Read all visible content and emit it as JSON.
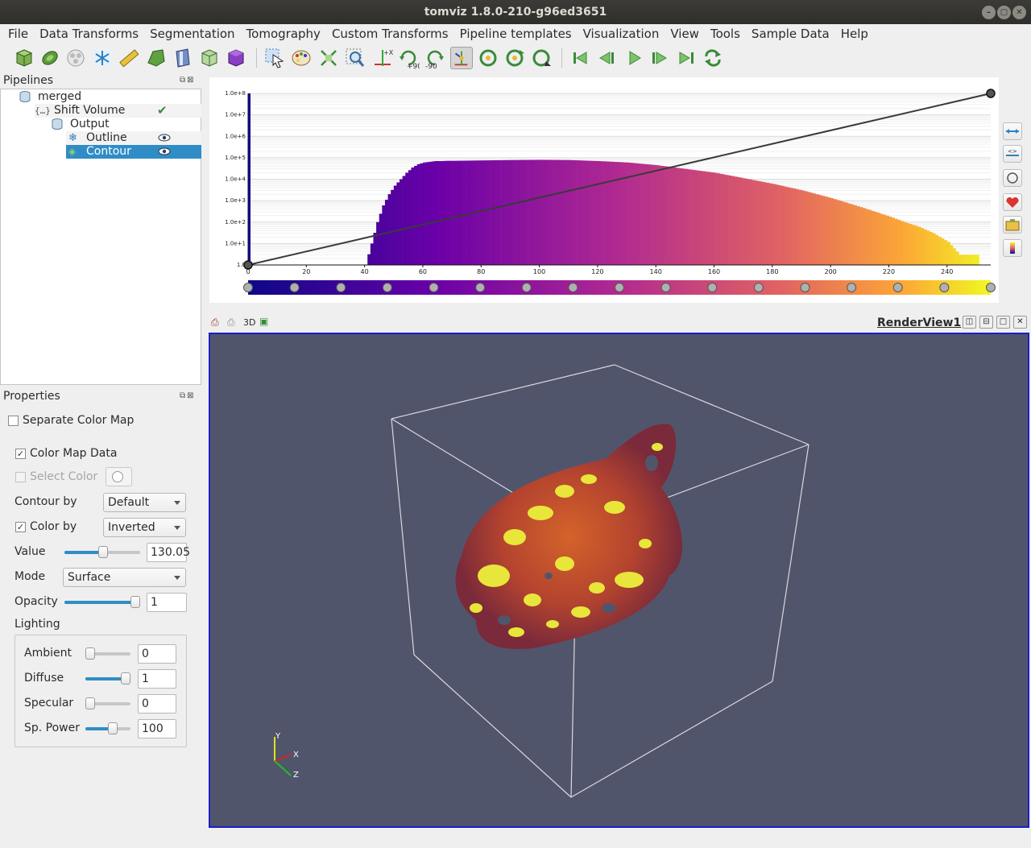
{
  "window": {
    "title": "tomviz 1.8.0-210-g96ed3651"
  },
  "menu": [
    "File",
    "Data Transforms",
    "Segmentation",
    "Tomography",
    "Custom Transforms",
    "Pipeline templates",
    "Visualization",
    "View",
    "Tools",
    "Sample Data",
    "Help"
  ],
  "toolbar": {
    "icons": [
      "open-data-icon",
      "reset-icon",
      "cubes-icon",
      "snowflake-icon",
      "ruler-icon",
      "shape-icon",
      "slice-icon",
      "cube-outline-icon",
      "volume-icon",
      "select-icon",
      "palette-icon",
      "reset-camera-icon",
      "zoom-to-box-icon",
      "axes-icon",
      "rotate-plus90-icon",
      "rotate-minus90-icon",
      "center-rotation-icon",
      "rotation-x-icon",
      "rotation-y-icon",
      "rotation-z-icon",
      "first-frame-icon",
      "previous-frame-icon",
      "play-icon",
      "next-frame-icon",
      "last-frame-icon",
      "loop-icon"
    ],
    "rotate_plus": "+90",
    "rotate_minus": "-90"
  },
  "pipelines": {
    "title": "Pipelines",
    "items": [
      {
        "label": "merged",
        "icon": "data-source-icon"
      },
      {
        "label": "Shift Volume",
        "icon": "python-operator-icon",
        "status": "checkmark-icon"
      },
      {
        "label": "Output",
        "icon": "data-source-icon"
      },
      {
        "label": "Outline",
        "icon": "outline-module-icon",
        "visibility": "eye-icon"
      },
      {
        "label": "Contour",
        "icon": "contour-module-icon",
        "visibility": "eye-icon",
        "selected": true
      }
    ]
  },
  "properties": {
    "title": "Properties",
    "separate_color_map": {
      "label": "Separate Color Map",
      "checked": false
    },
    "color_map_data": {
      "label": "Color Map Data",
      "checked": true
    },
    "select_color": {
      "label": "Select Color",
      "checked": false,
      "enabled": false
    },
    "contour_by": {
      "label": "Contour by",
      "value": "Default"
    },
    "color_by": {
      "label": "Color by",
      "checked": true,
      "value": "Inverted"
    },
    "value": {
      "label": "Value",
      "value": "130.05",
      "fraction": 0.51
    },
    "mode": {
      "label": "Mode",
      "value": "Surface"
    },
    "opacity": {
      "label": "Opacity",
      "value": "1",
      "fraction": 1.0
    },
    "lighting": {
      "label": "Lighting",
      "ambient": {
        "label": "Ambient",
        "value": "0",
        "fraction": 0.0
      },
      "diffuse": {
        "label": "Diffuse",
        "value": "1",
        "fraction": 1.0
      },
      "specular": {
        "label": "Specular",
        "value": "0",
        "fraction": 0.0
      },
      "sp_power": {
        "label": "Sp. Power",
        "value": "100",
        "fraction": 0.63
      }
    }
  },
  "histogram": {
    "colors": {
      "low": "#0d0887",
      "mid": "#9c179e",
      "midhigh": "#ed7953",
      "high": "#f0f921"
    },
    "side_buttons": [
      "fit-range-icon",
      "custom-range-icon",
      "gradient-opacity-icon",
      "save-preset-icon",
      "load-preset-icon",
      "color-legend-icon"
    ]
  },
  "chart_data": {
    "type": "bar",
    "title": "",
    "xlabel": "",
    "ylabel": "",
    "y_scale": "log",
    "xlim": [
      0,
      255
    ],
    "ylim": [
      1,
      100000000
    ],
    "x_ticks": [
      "0",
      "20",
      "40",
      "60",
      "80",
      "100",
      "120",
      "140",
      "160",
      "180",
      "200",
      "220",
      "240"
    ],
    "y_ticks": [
      "1.0",
      "1.0e+1",
      "1.0e+2",
      "1.0e+3",
      "1.0e+4",
      "1.0e+5",
      "1.0e+6",
      "1.0e+7",
      "1.0e+8"
    ],
    "x": [
      40,
      42,
      44,
      46,
      48,
      50,
      52,
      54,
      56,
      58,
      60,
      62,
      64,
      66,
      68,
      70,
      80,
      90,
      100,
      110,
      120,
      130,
      140,
      150,
      160,
      170,
      180,
      190,
      200,
      210,
      220,
      225,
      230,
      235,
      240,
      244,
      246,
      248,
      250
    ],
    "values": [
      1,
      10,
      100,
      600,
      2000,
      5000,
      10000,
      20000,
      35000,
      50000,
      60000,
      65000,
      70000,
      70000,
      72000,
      72000,
      75000,
      78000,
      80000,
      78000,
      70000,
      60000,
      45000,
      30000,
      20000,
      11000,
      6000,
      3000,
      1300,
      500,
      180,
      100,
      60,
      30,
      12,
      3,
      3,
      3,
      3
    ],
    "opacity_line": {
      "x": [
        0,
        255
      ],
      "y": [
        0,
        1
      ]
    },
    "color_nodes": 17
  },
  "render": {
    "mode_label": "3D",
    "view_name": "RenderView1",
    "background": "#51556b",
    "axes": {
      "y": "Y",
      "x": "X",
      "z": "Z"
    }
  }
}
